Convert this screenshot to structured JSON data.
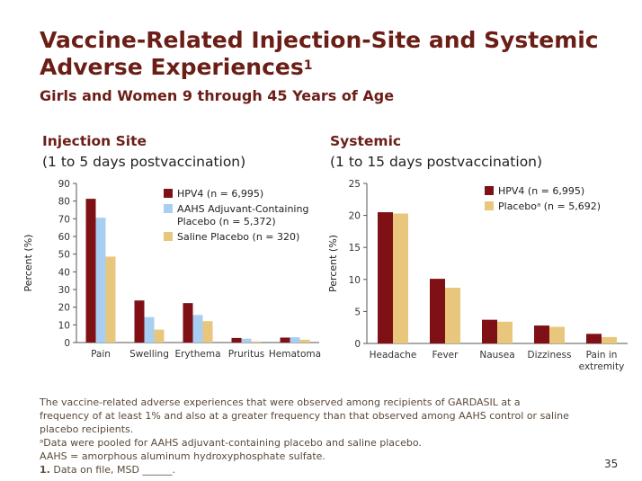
{
  "title_line1": "Vaccine-Related Injection-Site and Systemic",
  "title_line2": "Adverse Experiences",
  "title_sup": "1",
  "subtitle": "Girls and Women 9 through 45 Years of Age",
  "left_heading": "Injection Site",
  "left_subheading": "(1 to 5 days postvaccination)",
  "right_heading": "Systemic",
  "right_subheading": "(1 to 15 days postvaccination)",
  "colors": {
    "hpv4": "#7f1116",
    "aahs": "#a8cff2",
    "saline": "#e8c77d",
    "title": "#6b1e16"
  },
  "chart_data": [
    {
      "type": "bar",
      "title": "Injection Site",
      "ylabel": "Percent (%)",
      "ylim": [
        0,
        90
      ],
      "yticks": [
        0,
        10,
        20,
        30,
        40,
        50,
        60,
        70,
        80,
        90
      ],
      "categories": [
        "Pain",
        "Swelling",
        "Erythema",
        "Pruritus",
        "Hematoma"
      ],
      "series": [
        {
          "name": "HPV4 (n = 6,995)",
          "color": "#7f1116",
          "values": [
            81.3,
            23.8,
            22.3,
            2.6,
            2.8
          ]
        },
        {
          "name": "AAHS Adjuvant-Containing Placebo (n = 5,372)",
          "color": "#a8cff2",
          "values": [
            70.6,
            14.4,
            15.6,
            2.2,
            3.0
          ]
        },
        {
          "name": "Saline Placebo (n = 320)",
          "color": "#e8c77d",
          "values": [
            48.6,
            7.3,
            12.1,
            0.6,
            1.6
          ]
        }
      ],
      "legend_position": "top-right"
    },
    {
      "type": "bar",
      "title": "Systemic",
      "ylabel": "Percent (%)",
      "ylim": [
        0,
        25
      ],
      "yticks": [
        0,
        5,
        10,
        15,
        20,
        25
      ],
      "categories": [
        "Headache",
        "Fever",
        "Nausea",
        "Dizziness",
        "Pain in extremity"
      ],
      "series": [
        {
          "name": "HPV4 (n = 6,995)",
          "color": "#7f1116",
          "values": [
            20.5,
            10.1,
            3.7,
            2.8,
            1.5
          ]
        },
        {
          "name": "Placeboᵃ (n = 5,692)",
          "color": "#e8c77d",
          "values": [
            20.3,
            8.7,
            3.4,
            2.6,
            1.0
          ]
        }
      ],
      "legend_position": "top-right"
    }
  ],
  "footer_lines": [
    "The vaccine-related adverse experiences that were observed among recipients of GARDASIL at a",
    "frequency of at least 1% and also at a greater frequency than that observed among AAHS control or saline",
    "placebo recipients.",
    "ᵃData were pooled for AAHS adjuvant-containing placebo and saline placebo.",
    "AAHS = amorphous aluminum hydroxyphosphate sulfate."
  ],
  "ref_number": "1.",
  "ref_text": "Data on file, MSD ______.",
  "page_number": "35"
}
